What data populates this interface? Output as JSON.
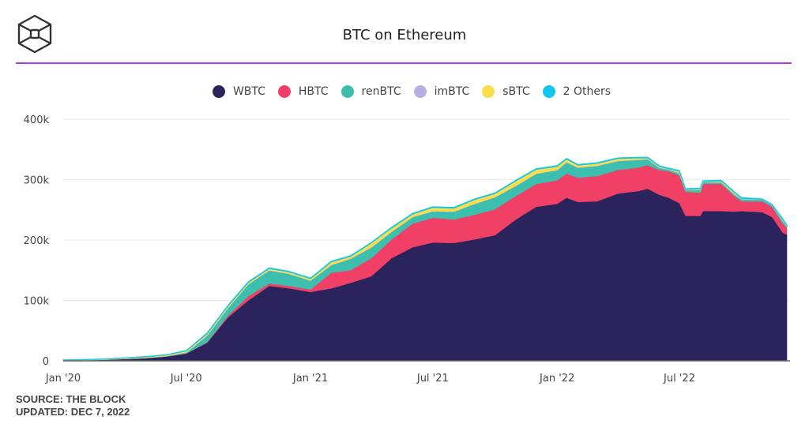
{
  "header": {
    "title": "BTC on Ethereum",
    "logo": "the-block-cube-logo",
    "accent_color": "#a43cf2"
  },
  "footer": {
    "source": "SOURCE: THE BLOCK",
    "updated": "UPDATED: DEC 7, 2022"
  },
  "chart_data": {
    "type": "area",
    "stacked": true,
    "title": "BTC on Ethereum",
    "xlabel": "",
    "ylabel": "",
    "ylim": [
      0,
      400000
    ],
    "grid": true,
    "legend_position": "top",
    "y_ticks": [
      {
        "value": 0,
        "label": "0"
      },
      {
        "value": 100000,
        "label": "100k"
      },
      {
        "value": 200000,
        "label": "200k"
      },
      {
        "value": 300000,
        "label": "300k"
      },
      {
        "value": 400000,
        "label": "400k"
      }
    ],
    "x_ticks": [
      {
        "date": "2020-01-01",
        "label": "Jan '20"
      },
      {
        "date": "2020-07-01",
        "label": "Jul '20"
      },
      {
        "date": "2021-01-01",
        "label": "Jan '21"
      },
      {
        "date": "2021-07-01",
        "label": "Jul '21"
      },
      {
        "date": "2022-01-01",
        "label": "Jan '22"
      },
      {
        "date": "2022-07-01",
        "label": "Jul '22"
      }
    ],
    "x_range": [
      "2020-01-01",
      "2022-12-07"
    ],
    "x": [
      "2020-01-01",
      "2020-02-01",
      "2020-03-01",
      "2020-04-01",
      "2020-05-01",
      "2020-06-01",
      "2020-07-01",
      "2020-08-01",
      "2020-09-01",
      "2020-10-01",
      "2020-11-01",
      "2020-12-01",
      "2021-01-01",
      "2021-02-01",
      "2021-03-01",
      "2021-04-01",
      "2021-05-01",
      "2021-06-01",
      "2021-07-01",
      "2021-08-01",
      "2021-09-01",
      "2021-10-01",
      "2021-11-01",
      "2021-12-01",
      "2022-01-01",
      "2022-01-15",
      "2022-02-01",
      "2022-03-01",
      "2022-04-01",
      "2022-05-01",
      "2022-05-15",
      "2022-06-01",
      "2022-06-15",
      "2022-07-01",
      "2022-07-10",
      "2022-08-01",
      "2022-08-05",
      "2022-09-01",
      "2022-09-20",
      "2022-10-01",
      "2022-11-01",
      "2022-11-15",
      "2022-12-01",
      "2022-12-07"
    ],
    "series": [
      {
        "name": "WBTC",
        "color": "#2a235c",
        "values": [
          1000,
          1500,
          2000,
          3000,
          4500,
          7000,
          12000,
          30000,
          72000,
          100000,
          124000,
          120000,
          114000,
          120000,
          129000,
          140000,
          170000,
          188000,
          196000,
          195000,
          201000,
          208000,
          234000,
          255000,
          260000,
          270000,
          263000,
          264000,
          277000,
          281000,
          285000,
          275000,
          270000,
          261000,
          240000,
          240000,
          248000,
          248000,
          247000,
          248000,
          246000,
          238000,
          212000,
          209000
        ]
      },
      {
        "name": "HBTC",
        "color": "#f04066",
        "values": [
          0,
          0,
          0,
          0,
          0,
          0,
          0,
          1000,
          3000,
          7000,
          4000,
          4000,
          4000,
          26000,
          21000,
          30000,
          31000,
          39000,
          41000,
          39000,
          41000,
          43000,
          39000,
          38000,
          39000,
          40000,
          40000,
          42000,
          39000,
          39000,
          39000,
          41000,
          44000,
          46000,
          40000,
          38000,
          45000,
          45000,
          26000,
          16000,
          18000,
          17000,
          15000,
          11000
        ]
      },
      {
        "name": "renBTC",
        "color": "#3dbfb0",
        "values": [
          0,
          0,
          200,
          500,
          500,
          1000,
          2000,
          11000,
          13000,
          20000,
          22000,
          20000,
          15000,
          13000,
          19000,
          18000,
          13000,
          11000,
          11000,
          13000,
          18000,
          20000,
          17000,
          17000,
          17000,
          19000,
          17000,
          17000,
          15000,
          13000,
          10000,
          4000,
          3000,
          4000,
          3000,
          5000,
          3000,
          3000,
          3000,
          4000,
          3000,
          3000,
          5000,
          3000
        ]
      },
      {
        "name": "imBTC",
        "color": "#b7aee3",
        "values": [
          0,
          0,
          0,
          200,
          300,
          300,
          500,
          500,
          500,
          500,
          500,
          500,
          500,
          500,
          500,
          500,
          500,
          500,
          500,
          500,
          500,
          500,
          500,
          500,
          500,
          500,
          500,
          500,
          500,
          500,
          500,
          500,
          500,
          500,
          500,
          500,
          500,
          500,
          500,
          500,
          500,
          500,
          500,
          500
        ]
      },
      {
        "name": "sBTC",
        "color": "#fbdc4a",
        "values": [
          300,
          500,
          600,
          1000,
          1200,
          1200,
          2000,
          2500,
          2500,
          2500,
          2500,
          2500,
          2500,
          4500,
          3500,
          6500,
          5500,
          4500,
          5500,
          5500,
          6500,
          5500,
          7500,
          6500,
          5500,
          4500,
          3500,
          3500,
          3500,
          2500,
          1500,
          1500,
          500,
          2500,
          500,
          1500,
          500,
          1500,
          2500,
          500,
          0,
          0,
          1500,
          500
        ]
      },
      {
        "name": "2 Others",
        "color": "#10c8ef",
        "values": [
          200,
          200,
          200,
          300,
          500,
          500,
          500,
          1000,
          1000,
          1000,
          1000,
          1000,
          1000,
          1000,
          1000,
          1000,
          1000,
          1000,
          1000,
          1000,
          1000,
          1000,
          1000,
          1000,
          1000,
          1000,
          1000,
          1000,
          1000,
          1000,
          1000,
          1000,
          1000,
          1000,
          1000,
          1000,
          1000,
          1000,
          1000,
          1000,
          500,
          500,
          1000,
          1000
        ]
      }
    ]
  }
}
